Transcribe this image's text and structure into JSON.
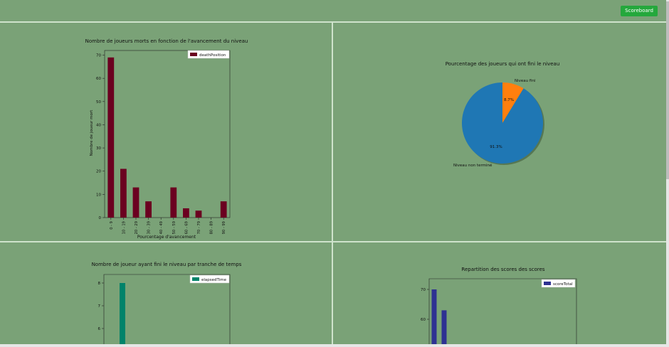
{
  "header": {
    "scoreboard_label": "Scoreboard"
  },
  "chart_data": [
    {
      "type": "bar",
      "title": "Nombre de joueurs morts en fonction de l'avancement du niveau",
      "xlabel": "Pourcentage d'avancement",
      "ylabel": "Nombre de joueur mort",
      "categories": [
        "0 - 9",
        "10 - 19",
        "20 - 29",
        "30 - 39",
        "40 - 49",
        "50 - 59",
        "60 - 69",
        "70 - 79",
        "80 - 89",
        "90 - 99"
      ],
      "series": [
        {
          "name": "deathPosition",
          "values": [
            69,
            21,
            13,
            7,
            0,
            13,
            4,
            3,
            0,
            7
          ]
        }
      ],
      "ylim": [
        0,
        72
      ],
      "yticks": [
        0,
        10,
        20,
        30,
        40,
        50,
        60,
        70
      ],
      "legend": "top-right",
      "color": "#6b0020"
    },
    {
      "type": "pie",
      "title": "Pourcentage des joueurs qui ont fini le niveau",
      "slices": [
        {
          "label": "Niveau fini",
          "value": 8.7,
          "pct_label": "8.7%",
          "color": "#ff7f0e"
        },
        {
          "label": "Niveau non terminé",
          "value": 91.3,
          "pct_label": "91.3%",
          "color": "#1f77b4"
        }
      ]
    },
    {
      "type": "bar",
      "title": "Nombre de joueur ayant fini le niveau par tranche de temps",
      "series": [
        {
          "name": "elapsedTime",
          "values": [
            0,
            8
          ]
        }
      ],
      "yticks": [
        6,
        7,
        8
      ],
      "legend": "top-right",
      "color": "#00836a"
    },
    {
      "type": "bar",
      "title": "Repartition des scores des scores",
      "series": [
        {
          "name": "scoreTotal",
          "values": [
            70,
            63
          ]
        }
      ],
      "yticks": [
        60,
        70
      ],
      "legend": "top-right",
      "color": "#2e3192"
    }
  ]
}
